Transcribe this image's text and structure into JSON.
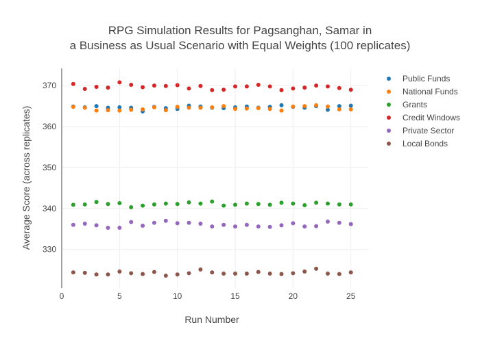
{
  "chart_data": {
    "type": "scatter",
    "title_lines": [
      "RPG Simulation Results for Pagsanghan, Samar in",
      "a Business as Usual Scenario with Equal Weights (100 replicates)"
    ],
    "xlabel": "Run Number",
    "ylabel": "Average Score (across replicates)",
    "xlim": [
      0,
      26.5
    ],
    "ylim": [
      320.6,
      374.2
    ],
    "xticks": [
      0,
      5,
      10,
      15,
      20,
      25
    ],
    "yticks": [
      330,
      340,
      350,
      360,
      370
    ],
    "grid": true,
    "legend_position": "top-right",
    "x": [
      1,
      2,
      3,
      4,
      5,
      6,
      7,
      8,
      9,
      10,
      11,
      12,
      13,
      14,
      15,
      16,
      17,
      18,
      19,
      20,
      21,
      22,
      23,
      24,
      25
    ],
    "series": [
      {
        "name": "Public Funds",
        "color": "#1f77b4",
        "values": [
          364.9,
          364.7,
          365.0,
          364.6,
          364.7,
          364.6,
          363.7,
          364.8,
          364.5,
          364.3,
          365.1,
          364.9,
          364.6,
          364.5,
          364.7,
          364.9,
          364.6,
          364.8,
          365.2,
          364.8,
          364.6,
          365.0,
          364.1,
          365.0,
          365.1
        ]
      },
      {
        "name": "National Funds",
        "color": "#ff7f0e",
        "values": [
          364.8,
          364.6,
          363.9,
          364.0,
          363.9,
          364.1,
          364.2,
          364.7,
          364.0,
          364.8,
          364.6,
          364.6,
          364.7,
          365.0,
          364.3,
          364.4,
          364.5,
          364.3,
          363.9,
          364.9,
          365.0,
          365.2,
          364.9,
          364.2,
          364.2
        ]
      },
      {
        "name": "Grants",
        "color": "#2ca02c",
        "values": [
          340.9,
          341.0,
          341.6,
          341.1,
          341.3,
          340.3,
          340.7,
          341.0,
          341.2,
          341.1,
          341.5,
          341.2,
          341.7,
          340.7,
          340.9,
          341.2,
          341.1,
          340.9,
          341.4,
          341.2,
          340.8,
          341.4,
          341.2,
          341.0,
          341.0
        ]
      },
      {
        "name": "Credit Windows",
        "color": "#d62728",
        "values": [
          370.4,
          369.2,
          369.7,
          369.5,
          370.8,
          370.2,
          369.6,
          370.0,
          369.9,
          370.1,
          369.3,
          369.9,
          368.9,
          369.0,
          369.8,
          369.8,
          370.2,
          369.8,
          368.9,
          369.3,
          369.5,
          370.0,
          369.8,
          369.4,
          369.0
        ]
      },
      {
        "name": "Private Sector",
        "color": "#9467bd",
        "values": [
          336.0,
          336.3,
          335.9,
          335.3,
          335.3,
          336.7,
          335.8,
          336.5,
          337.0,
          336.4,
          336.5,
          336.3,
          335.6,
          336.0,
          335.6,
          336.0,
          335.6,
          335.5,
          335.9,
          336.4,
          335.6,
          335.7,
          336.8,
          336.5,
          336.2
        ]
      },
      {
        "name": "Local Bonds",
        "color": "#8c564b",
        "values": [
          324.4,
          324.3,
          323.9,
          323.9,
          324.6,
          324.2,
          324.0,
          324.5,
          323.6,
          323.9,
          324.2,
          325.1,
          324.4,
          324.1,
          324.1,
          324.1,
          324.5,
          324.1,
          324.0,
          324.2,
          324.6,
          325.3,
          324.1,
          324.0,
          324.4
        ]
      }
    ]
  }
}
